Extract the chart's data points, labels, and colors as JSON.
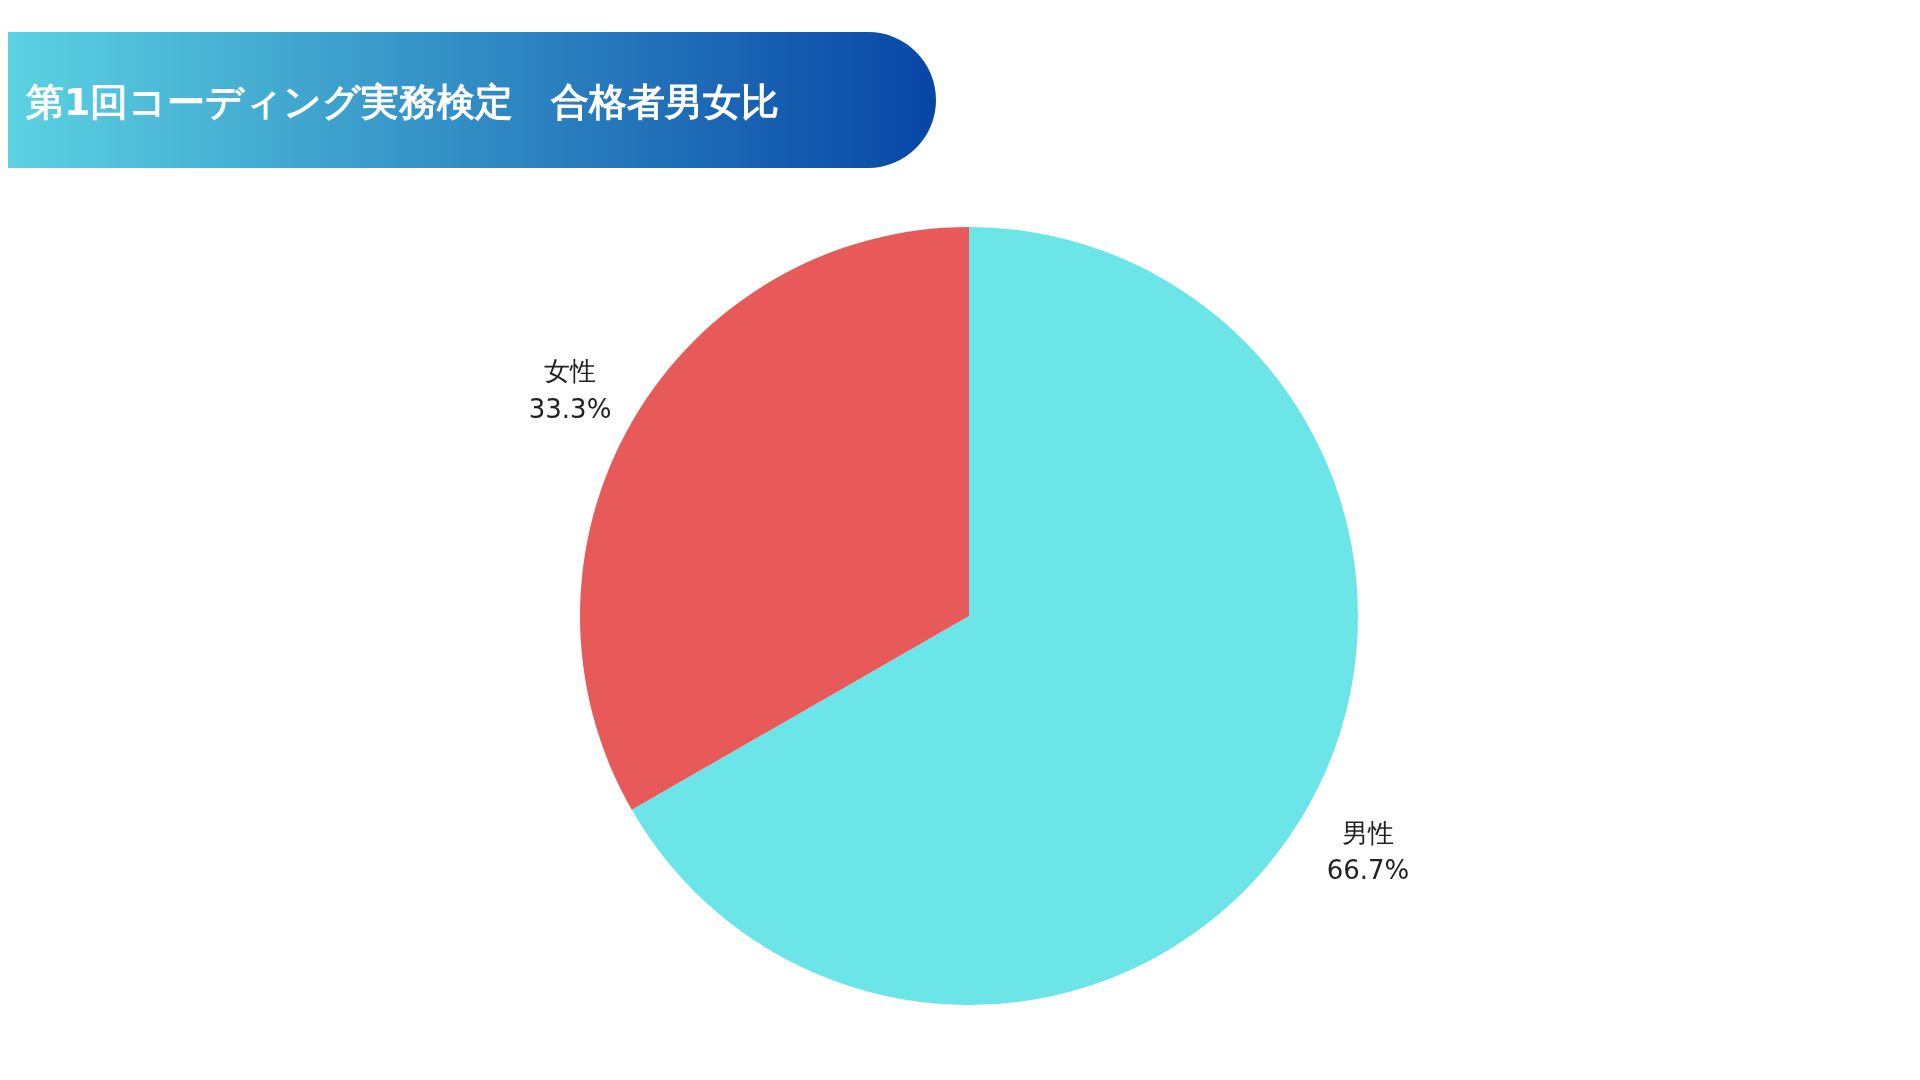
{
  "chart_data": {
    "type": "pie",
    "title": "第1回コーディング実務検定　合格者男女比",
    "categories": [
      "男性",
      "女性"
    ],
    "values": [
      66.7,
      33.3
    ],
    "value_labels": [
      "66.7%",
      "33.3%"
    ],
    "colors": [
      "#6ce5e8",
      "#e85a5a"
    ]
  }
}
